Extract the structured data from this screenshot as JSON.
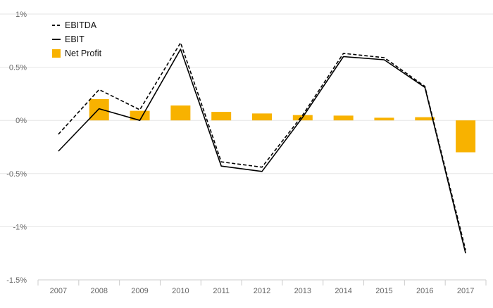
{
  "chart_data": {
    "type": "bar",
    "categories": [
      "2007",
      "2008",
      "2009",
      "2010",
      "2011",
      "2012",
      "2013",
      "2014",
      "2015",
      "2016",
      "2017"
    ],
    "series": [
      {
        "name": "EBITDA",
        "type": "line",
        "style": "dashed",
        "color": "#000000",
        "values": [
          -0.13,
          0.29,
          0.1,
          0.73,
          -0.39,
          -0.44,
          0.05,
          0.63,
          0.59,
          0.32,
          -1.22
        ]
      },
      {
        "name": "EBIT",
        "type": "line",
        "style": "solid",
        "color": "#000000",
        "values": [
          -0.29,
          0.11,
          0.0,
          0.67,
          -0.43,
          -0.48,
          0.03,
          0.6,
          0.57,
          0.31,
          -1.25
        ]
      },
      {
        "name": "Net Profit",
        "type": "bar",
        "color": "#F8B200",
        "values": [
          0.0,
          0.2,
          0.09,
          0.14,
          0.08,
          0.065,
          0.05,
          0.045,
          0.025,
          0.03,
          -0.3
        ]
      }
    ],
    "ylim": [
      -1.5,
      1.0
    ],
    "yticks": [
      {
        "value": 1.0,
        "label": "1%"
      },
      {
        "value": 0.5,
        "label": "0.5%"
      },
      {
        "value": 0.0,
        "label": "0%"
      },
      {
        "value": -0.5,
        "label": "-0.5%"
      },
      {
        "value": -1.0,
        "label": "-1%"
      },
      {
        "value": -1.5,
        "label": "-1.5%"
      }
    ],
    "grid": true,
    "legend": {
      "position": "top-left",
      "items": [
        {
          "label": "EBITDA",
          "marker": "dashed-line"
        },
        {
          "label": "EBIT",
          "marker": "solid-line"
        },
        {
          "label": "Net Profit",
          "marker": "square"
        }
      ]
    },
    "title": "",
    "xlabel": "",
    "ylabel": ""
  }
}
